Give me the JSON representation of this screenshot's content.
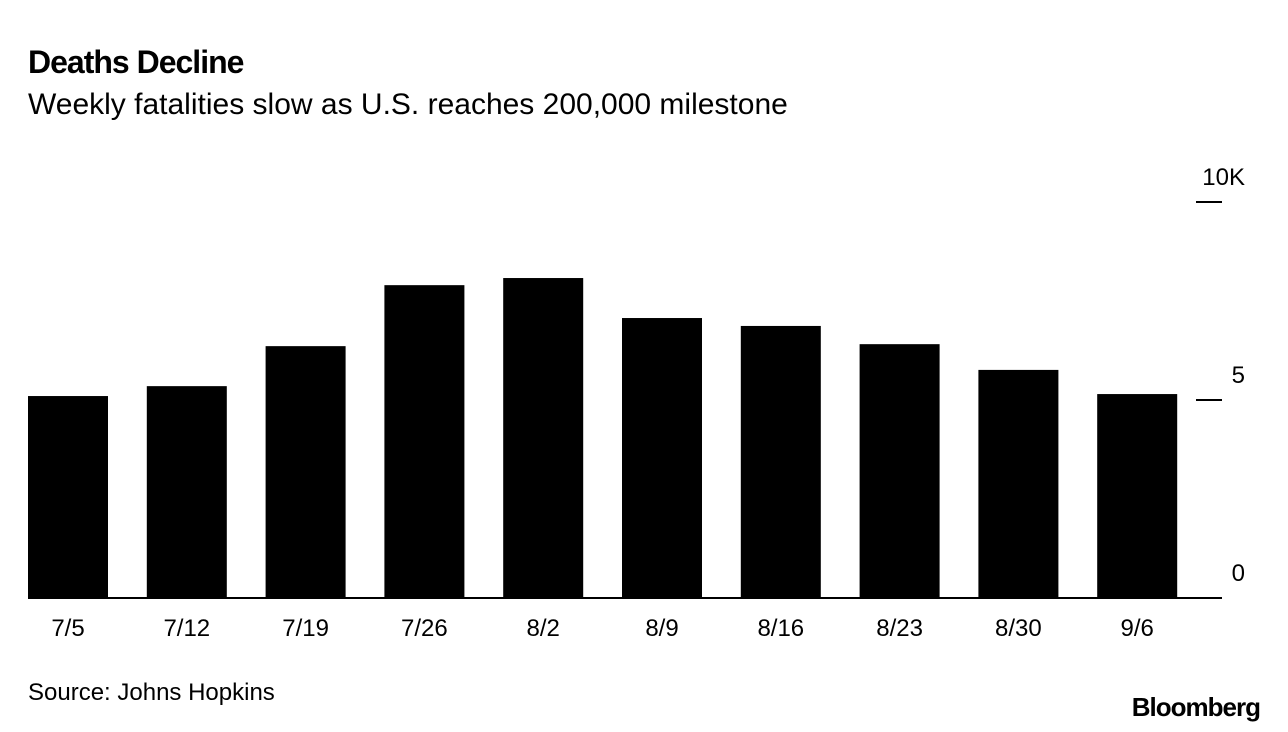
{
  "chart_data": {
    "type": "bar",
    "title": "Deaths Decline",
    "subtitle": "Weekly fatalities slow as U.S. reaches 200,000 milestone",
    "categories": [
      "7/5",
      "7/12",
      "7/19",
      "7/26",
      "8/2",
      "8/9",
      "8/16",
      "8/23",
      "8/30",
      "9/6"
    ],
    "values": [
      5.1,
      5.35,
      6.36,
      7.9,
      8.08,
      7.07,
      6.87,
      6.41,
      5.76,
      5.15
    ],
    "color": "#000000",
    "ylim": [
      0,
      10
    ],
    "yticks": [
      0,
      5,
      {
        "value": 10,
        "label": "10K"
      }
    ],
    "y_axis_side": "right",
    "source": "Source: Johns Hopkins",
    "brand": "Bloomberg"
  }
}
